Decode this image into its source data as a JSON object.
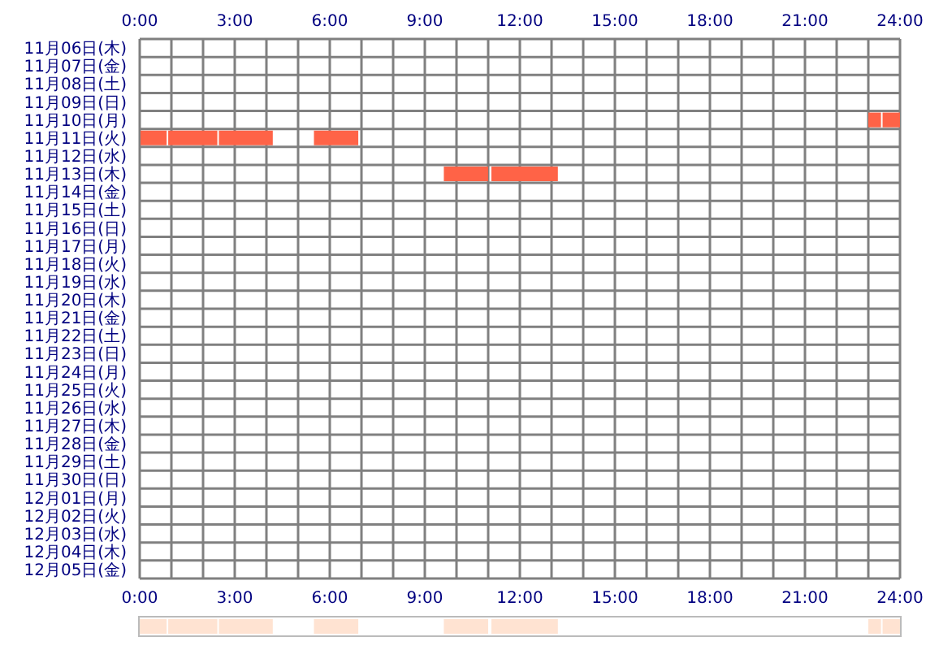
{
  "chart_data": [
    {
      "type": "bar",
      "orientation": "horizontal",
      "grid": true,
      "categories": [
        "11月06日(木)",
        "11月07日(金)",
        "11月08日(土)",
        "11月09日(日)",
        "11月10日(月)",
        "11月11日(火)",
        "11月12日(水)",
        "11月13日(木)",
        "11月14日(金)",
        "11月15日(土)",
        "11月16日(日)",
        "11月17日(月)",
        "11月18日(火)",
        "11月19日(水)",
        "11月20日(木)",
        "11月21日(金)",
        "11月22日(土)",
        "11月23日(日)",
        "11月24日(月)",
        "11月25日(火)",
        "11月26日(水)",
        "11月27日(木)",
        "11月28日(金)",
        "11月29日(土)",
        "11月30日(日)",
        "12月01日(月)",
        "12月02日(火)",
        "12月03日(水)",
        "12月04日(木)",
        "12月05日(金)"
      ],
      "series": [
        {
          "color": "#ff6347",
          "base": [
            null,
            null,
            null,
            null,
            23.0,
            0,
            null,
            9.6,
            null,
            null,
            null,
            null,
            null,
            null,
            null,
            null,
            null,
            null,
            null,
            null,
            null,
            null,
            null,
            null,
            null,
            null,
            null,
            null,
            null,
            null
          ],
          "values": [
            null,
            null,
            null,
            null,
            0.4,
            0.85,
            null,
            1.4,
            null,
            null,
            null,
            null,
            null,
            null,
            null,
            null,
            null,
            null,
            null,
            null,
            null,
            null,
            null,
            null,
            null,
            null,
            null,
            null,
            null,
            null
          ]
        },
        {
          "color": "#ff6347",
          "base": [
            null,
            null,
            null,
            null,
            23.45,
            0.9,
            null,
            11.1,
            null,
            null,
            null,
            null,
            null,
            null,
            null,
            null,
            null,
            null,
            null,
            null,
            null,
            null,
            null,
            null,
            null,
            null,
            null,
            null,
            null,
            null
          ],
          "values": [
            null,
            null,
            null,
            null,
            0.55,
            1.55,
            null,
            2.1,
            null,
            null,
            null,
            null,
            null,
            null,
            null,
            null,
            null,
            null,
            null,
            null,
            null,
            null,
            null,
            null,
            null,
            null,
            null,
            null,
            null,
            null
          ]
        },
        {
          "color": "#ff6347",
          "base": [
            null,
            null,
            null,
            null,
            null,
            2.5,
            null,
            null,
            null,
            null,
            null,
            null,
            null,
            null,
            null,
            null,
            null,
            null,
            null,
            null,
            null,
            null,
            null,
            null,
            null,
            null,
            null,
            null,
            null,
            null
          ],
          "values": [
            null,
            null,
            null,
            null,
            null,
            1.7,
            null,
            null,
            null,
            null,
            null,
            null,
            null,
            null,
            null,
            null,
            null,
            null,
            null,
            null,
            null,
            null,
            null,
            null,
            null,
            null,
            null,
            null,
            null,
            null
          ]
        },
        {
          "color": "#ff6347",
          "base": [
            null,
            null,
            null,
            null,
            null,
            5.5,
            null,
            null,
            null,
            null,
            null,
            null,
            null,
            null,
            null,
            null,
            null,
            null,
            null,
            null,
            null,
            null,
            null,
            null,
            null,
            null,
            null,
            null,
            null,
            null
          ],
          "values": [
            null,
            null,
            null,
            null,
            null,
            1.4,
            null,
            null,
            null,
            null,
            null,
            null,
            null,
            null,
            null,
            null,
            null,
            null,
            null,
            null,
            null,
            null,
            null,
            null,
            null,
            null,
            null,
            null,
            null,
            null
          ]
        }
      ],
      "xlim": [
        0,
        24
      ],
      "xticks": [
        {
          "value": 0,
          "label": "0:00"
        },
        {
          "value": 1,
          "label": null
        },
        {
          "value": 2,
          "label": null
        },
        {
          "value": 3,
          "label": "3:00"
        },
        {
          "value": 4,
          "label": null
        },
        {
          "value": 5,
          "label": null
        },
        {
          "value": 6,
          "label": "6:00"
        },
        {
          "value": 7,
          "label": null
        },
        {
          "value": 8,
          "label": null
        },
        {
          "value": 9,
          "label": "9:00"
        },
        {
          "value": 10,
          "label": null
        },
        {
          "value": 11,
          "label": null
        },
        {
          "value": 12,
          "label": "12:00"
        },
        {
          "value": 13,
          "label": null
        },
        {
          "value": 14,
          "label": null
        },
        {
          "value": 15,
          "label": "15:00"
        },
        {
          "value": 16,
          "label": null
        },
        {
          "value": 17,
          "label": null
        },
        {
          "value": 18,
          "label": "18:00"
        },
        {
          "value": 19,
          "label": null
        },
        {
          "value": 20,
          "label": null
        },
        {
          "value": 21,
          "label": "21:00"
        },
        {
          "value": 22,
          "label": null
        },
        {
          "value": 23,
          "label": null
        },
        {
          "value": 24,
          "label": "24:00"
        }
      ],
      "x2lim": [
        0,
        24
      ],
      "x2ticks": [
        {
          "value": 0,
          "label": "0:00"
        },
        {
          "value": 1,
          "label": null
        },
        {
          "value": 2,
          "label": null
        },
        {
          "value": 3,
          "label": "3:00"
        },
        {
          "value": 4,
          "label": null
        },
        {
          "value": 5,
          "label": null
        },
        {
          "value": 6,
          "label": "6:00"
        },
        {
          "value": 7,
          "label": null
        },
        {
          "value": 8,
          "label": null
        },
        {
          "value": 9,
          "label": "9:00"
        },
        {
          "value": 10,
          "label": null
        },
        {
          "value": 11,
          "label": null
        },
        {
          "value": 12,
          "label": "12:00"
        },
        {
          "value": 13,
          "label": null
        },
        {
          "value": 14,
          "label": null
        },
        {
          "value": 15,
          "label": "15:00"
        },
        {
          "value": 16,
          "label": null
        },
        {
          "value": 17,
          "label": null
        },
        {
          "value": 18,
          "label": "18:00"
        },
        {
          "value": 19,
          "label": null
        },
        {
          "value": 20,
          "label": null
        },
        {
          "value": 21,
          "label": "21:00"
        },
        {
          "value": 22,
          "label": null
        },
        {
          "value": 23,
          "label": null
        },
        {
          "value": 24,
          "label": "24:00"
        }
      ]
    },
    {
      "type": "bar",
      "orientation": "horizontal",
      "tick_labels": false,
      "categories": [
        null
      ],
      "series": [
        {
          "color": "#ffe3d2",
          "base": [
            0
          ],
          "values": [
            0.85
          ]
        },
        {
          "color": "#ffe3d2",
          "base": [
            0.9
          ],
          "values": [
            1.55
          ]
        },
        {
          "color": "#ffe3d2",
          "base": [
            2.5
          ],
          "values": [
            1.7
          ]
        },
        {
          "color": "#ffe3d2",
          "base": [
            5.5
          ],
          "values": [
            1.4
          ]
        },
        {
          "color": "#ffe3d2",
          "base": [
            9.6
          ],
          "values": [
            1.4
          ]
        },
        {
          "color": "#ffe3d2",
          "base": [
            11.1
          ],
          "values": [
            2.1
          ]
        },
        {
          "color": "#ffe3d2",
          "base": [
            23.0
          ],
          "values": [
            0.4
          ]
        },
        {
          "color": "#ffe3d2",
          "base": [
            23.45
          ],
          "values": [
            0.55
          ]
        }
      ],
      "xlim": [
        0,
        24
      ]
    }
  ]
}
